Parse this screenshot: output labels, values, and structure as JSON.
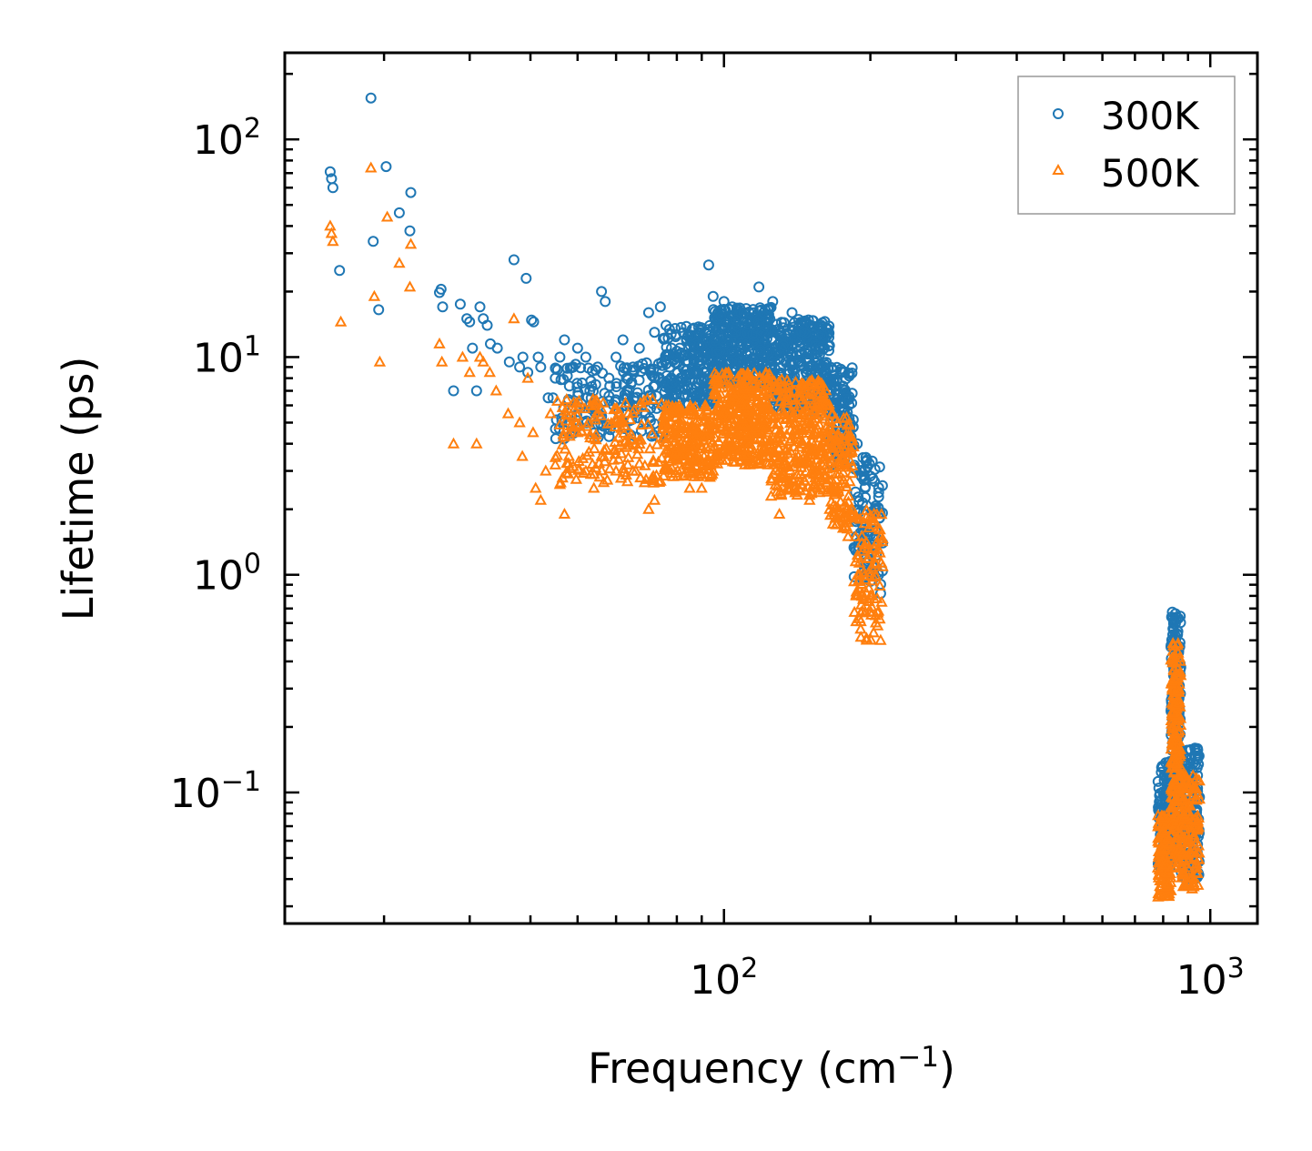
{
  "chart_data": {
    "type": "scatter",
    "xscale": "log",
    "yscale": "log",
    "xlim": [
      12.5,
      1250
    ],
    "ylim": [
      0.025,
      250
    ],
    "xlabel": "Frequency (cm",
    "xlabel_sup": "−1",
    "xlabel_tail": ")",
    "ylabel": "Lifetime (ps)",
    "x_ticks": [
      {
        "value": 100,
        "base": "10",
        "exp": "2"
      },
      {
        "value": 1000,
        "base": "10",
        "exp": "3"
      }
    ],
    "y_ticks": [
      {
        "value": 100,
        "base": "10",
        "exp": "2"
      },
      {
        "value": 10,
        "base": "10",
        "exp": "1"
      },
      {
        "value": 1,
        "base": "10",
        "exp": "0"
      },
      {
        "value": 0.1,
        "base": "10",
        "exp": "−1"
      }
    ],
    "legend": {
      "position": "upper right"
    },
    "series": [
      {
        "name": "300K",
        "marker": "circle",
        "color": "#1f77b4",
        "points": [
          [
            15.5,
            71
          ],
          [
            15.6,
            66
          ],
          [
            15.7,
            60
          ],
          [
            16.2,
            25
          ],
          [
            18.8,
            155
          ],
          [
            19.0,
            34
          ],
          [
            19.5,
            16.5
          ],
          [
            20.2,
            75
          ],
          [
            21.5,
            46
          ],
          [
            22.7,
            57
          ],
          [
            22.6,
            38
          ],
          [
            26.0,
            19.8
          ],
          [
            26.2,
            20.5
          ],
          [
            26.4,
            17
          ],
          [
            27.8,
            7
          ],
          [
            28.7,
            17.5
          ],
          [
            29.6,
            15
          ],
          [
            30.0,
            14.5
          ],
          [
            30.4,
            11
          ],
          [
            31.0,
            7
          ],
          [
            31.5,
            17
          ],
          [
            32.0,
            15
          ],
          [
            32.6,
            14
          ],
          [
            33.1,
            11.5
          ],
          [
            34.2,
            11
          ],
          [
            36.2,
            9.5
          ],
          [
            37.0,
            28
          ],
          [
            38.0,
            9
          ],
          [
            38.6,
            10
          ],
          [
            39.2,
            23
          ],
          [
            39.5,
            8.5
          ],
          [
            40.2,
            14.8
          ],
          [
            40.6,
            14.5
          ],
          [
            41.5,
            10
          ],
          [
            42.0,
            9
          ],
          [
            43.5,
            6.5
          ],
          [
            44.5,
            6.5
          ],
          [
            45.0,
            8
          ],
          [
            46.0,
            10
          ],
          [
            47.0,
            12
          ],
          [
            48.0,
            5
          ],
          [
            49.0,
            9
          ],
          [
            50.0,
            11
          ],
          [
            52.0,
            10
          ],
          [
            53.0,
            7
          ],
          [
            55.0,
            9
          ],
          [
            56.0,
            20
          ],
          [
            57.0,
            18
          ],
          [
            58.0,
            8
          ],
          [
            60.0,
            10
          ],
          [
            62.0,
            12
          ],
          [
            63.0,
            8
          ],
          [
            65.0,
            9
          ],
          [
            67.0,
            11
          ],
          [
            68.0,
            6.5
          ],
          [
            70.0,
            16
          ],
          [
            72.0,
            13
          ],
          [
            74.0,
            17
          ],
          [
            76.0,
            14
          ],
          [
            78.0,
            11
          ],
          [
            80.0,
            10
          ],
          [
            93.0,
            26.5
          ],
          [
            95.0,
            19
          ],
          [
            100.0,
            18
          ],
          [
            104.0,
            17
          ],
          [
            110.0,
            15
          ],
          [
            118.0,
            21
          ],
          [
            126.0,
            18
          ],
          [
            138.0,
            16
          ],
          [
            145.0,
            13
          ],
          [
            160.0,
            9
          ],
          [
            175.0,
            8.5
          ],
          [
            188.0,
            4
          ],
          [
            195.0,
            2.5
          ],
          [
            205.0,
            1.6
          ],
          [
            208.0,
            1.0
          ],
          [
            210.0,
            0.82
          ]
        ],
        "bands": [
          {
            "x0": 45,
            "x1": 75,
            "lo": 4.2,
            "hi": 9.5,
            "n": 160
          },
          {
            "x0": 75,
            "x1": 95,
            "lo": 6.0,
            "hi": 14.0,
            "n": 220
          },
          {
            "x0": 95,
            "x1": 125,
            "lo": 7.5,
            "hi": 17.0,
            "n": 360
          },
          {
            "x0": 125,
            "x1": 165,
            "lo": 5.5,
            "hi": 15.0,
            "n": 320
          },
          {
            "x0": 165,
            "x1": 185,
            "lo": 3.2,
            "hi": 9.0,
            "n": 120
          },
          {
            "x0": 185,
            "x1": 212,
            "lo": 0.9,
            "hi": 3.5,
            "n": 100
          },
          {
            "x0": 780,
            "x1": 830,
            "lo": 0.045,
            "hi": 0.14,
            "n": 120
          },
          {
            "x0": 830,
            "x1": 870,
            "lo": 0.06,
            "hi": 0.68,
            "n": 200
          },
          {
            "x0": 870,
            "x1": 950,
            "lo": 0.04,
            "hi": 0.16,
            "n": 140
          }
        ]
      },
      {
        "name": "500K",
        "marker": "triangle",
        "color": "#ff7f0e",
        "points": [
          [
            15.5,
            40
          ],
          [
            15.6,
            37
          ],
          [
            15.7,
            34
          ],
          [
            16.3,
            14.5
          ],
          [
            18.8,
            74
          ],
          [
            19.1,
            19
          ],
          [
            19.6,
            9.5
          ],
          [
            20.3,
            44
          ],
          [
            21.5,
            27
          ],
          [
            22.6,
            21
          ],
          [
            22.7,
            33
          ],
          [
            26.0,
            11.5
          ],
          [
            26.3,
            9.5
          ],
          [
            27.8,
            4
          ],
          [
            29.0,
            10
          ],
          [
            30.0,
            8.5
          ],
          [
            31.0,
            4
          ],
          [
            31.5,
            10
          ],
          [
            32.0,
            9.5
          ],
          [
            33.0,
            8.5
          ],
          [
            34.0,
            7
          ],
          [
            36.0,
            5.5
          ],
          [
            37.0,
            15
          ],
          [
            38.0,
            5
          ],
          [
            38.5,
            3.5
          ],
          [
            39.5,
            8
          ],
          [
            40.5,
            4.5
          ],
          [
            41.0,
            2.5
          ],
          [
            42.0,
            2.2
          ],
          [
            43.0,
            3
          ],
          [
            44.0,
            5.5
          ],
          [
            45.0,
            3.2
          ],
          [
            46.0,
            2.6
          ],
          [
            47.0,
            1.9
          ],
          [
            48.0,
            3.5
          ],
          [
            50.0,
            4.5
          ],
          [
            52.0,
            3
          ],
          [
            54.0,
            2.5
          ],
          [
            56.0,
            3.5
          ],
          [
            60.0,
            3
          ],
          [
            62.0,
            5
          ],
          [
            65.0,
            3
          ],
          [
            70.0,
            2.0
          ],
          [
            72.0,
            2.2
          ],
          [
            80.0,
            3.5
          ],
          [
            85.0,
            2.5
          ],
          [
            90.0,
            2.5
          ],
          [
            95.0,
            3
          ],
          [
            110.0,
            4
          ],
          [
            120.0,
            3.5
          ],
          [
            125.0,
            2.3
          ],
          [
            130.0,
            1.9
          ],
          [
            140.0,
            2.5
          ],
          [
            150.0,
            2.2
          ],
          [
            165.0,
            2.0
          ],
          [
            170.0,
            1.7
          ],
          [
            180.0,
            1.5
          ],
          [
            190.0,
            1.0
          ],
          [
            200.0,
            0.8
          ],
          [
            205.0,
            0.65
          ],
          [
            210.0,
            0.5
          ]
        ],
        "bands": [
          {
            "x0": 45,
            "x1": 75,
            "lo": 2.6,
            "hi": 6.5,
            "n": 160
          },
          {
            "x0": 75,
            "x1": 95,
            "lo": 2.8,
            "hi": 6.0,
            "n": 220
          },
          {
            "x0": 95,
            "x1": 125,
            "lo": 3.2,
            "hi": 8.5,
            "n": 360
          },
          {
            "x0": 125,
            "x1": 165,
            "lo": 2.3,
            "hi": 8.0,
            "n": 320
          },
          {
            "x0": 165,
            "x1": 185,
            "lo": 1.6,
            "hi": 5.5,
            "n": 120
          },
          {
            "x0": 185,
            "x1": 212,
            "lo": 0.5,
            "hi": 2.0,
            "n": 100
          },
          {
            "x0": 780,
            "x1": 830,
            "lo": 0.033,
            "hi": 0.08,
            "n": 120
          },
          {
            "x0": 830,
            "x1": 870,
            "lo": 0.045,
            "hi": 0.5,
            "n": 200
          },
          {
            "x0": 870,
            "x1": 950,
            "lo": 0.036,
            "hi": 0.12,
            "n": 140
          }
        ]
      }
    ]
  }
}
